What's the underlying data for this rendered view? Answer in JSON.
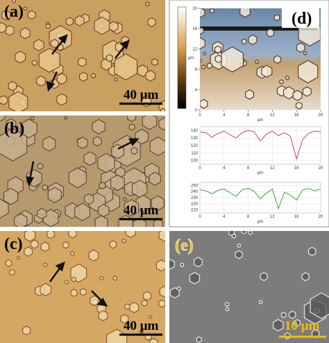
{
  "panels": [
    {
      "label": "(a)",
      "scale_bar": "40 μm"
    },
    {
      "label": "(b)",
      "scale_bar": "40 μm"
    },
    {
      "label": "(c)",
      "scale_bar": "40 μm"
    },
    {
      "label": "(d)"
    },
    {
      "label": "(e)",
      "scale_bar": "10 μm"
    }
  ],
  "afm": {
    "xticks": [
      0,
      4,
      8,
      12,
      16,
      20
    ],
    "yticks": [
      0,
      4,
      8,
      12,
      16,
      20
    ],
    "xlim": [
      0,
      20
    ],
    "ylim": [
      0,
      20
    ],
    "xlabel": "μm",
    "ylabel": "μm"
  },
  "profiles": [
    {
      "x": [
        0,
        1,
        2,
        3,
        4,
        5,
        6,
        7,
        8,
        9,
        10,
        11,
        12,
        13,
        14,
        15,
        16,
        17,
        18,
        19,
        20
      ],
      "values": [
        138,
        137,
        131,
        136,
        139,
        134,
        130,
        137,
        140,
        138,
        126,
        135,
        139,
        133,
        137,
        132,
        102,
        128,
        136,
        139,
        138
      ],
      "color": "#d04848",
      "xlim": [
        0,
        20
      ],
      "ylim": [
        95,
        145
      ],
      "yticks": [
        100,
        110,
        120,
        130,
        140
      ],
      "xticks": [
        0,
        4,
        8,
        12,
        16,
        20
      ],
      "xlabel": "μm"
    },
    {
      "x": [
        0,
        1,
        2,
        3,
        4,
        5,
        6,
        7,
        8,
        9,
        10,
        11,
        12,
        13,
        14,
        15,
        16,
        17,
        18,
        19,
        20
      ],
      "values": [
        243,
        241,
        236,
        242,
        244,
        238,
        232,
        243,
        245,
        240,
        228,
        237,
        244,
        212,
        239,
        234,
        226,
        242,
        245,
        241,
        244
      ],
      "color": "#3aa03a",
      "xlim": [
        0,
        20
      ],
      "ylim": [
        205,
        255
      ],
      "yticks": [
        210,
        220,
        230,
        240,
        250
      ],
      "xticks": [
        0,
        4,
        8,
        12,
        16,
        20
      ],
      "xlabel": "μm"
    }
  ]
}
